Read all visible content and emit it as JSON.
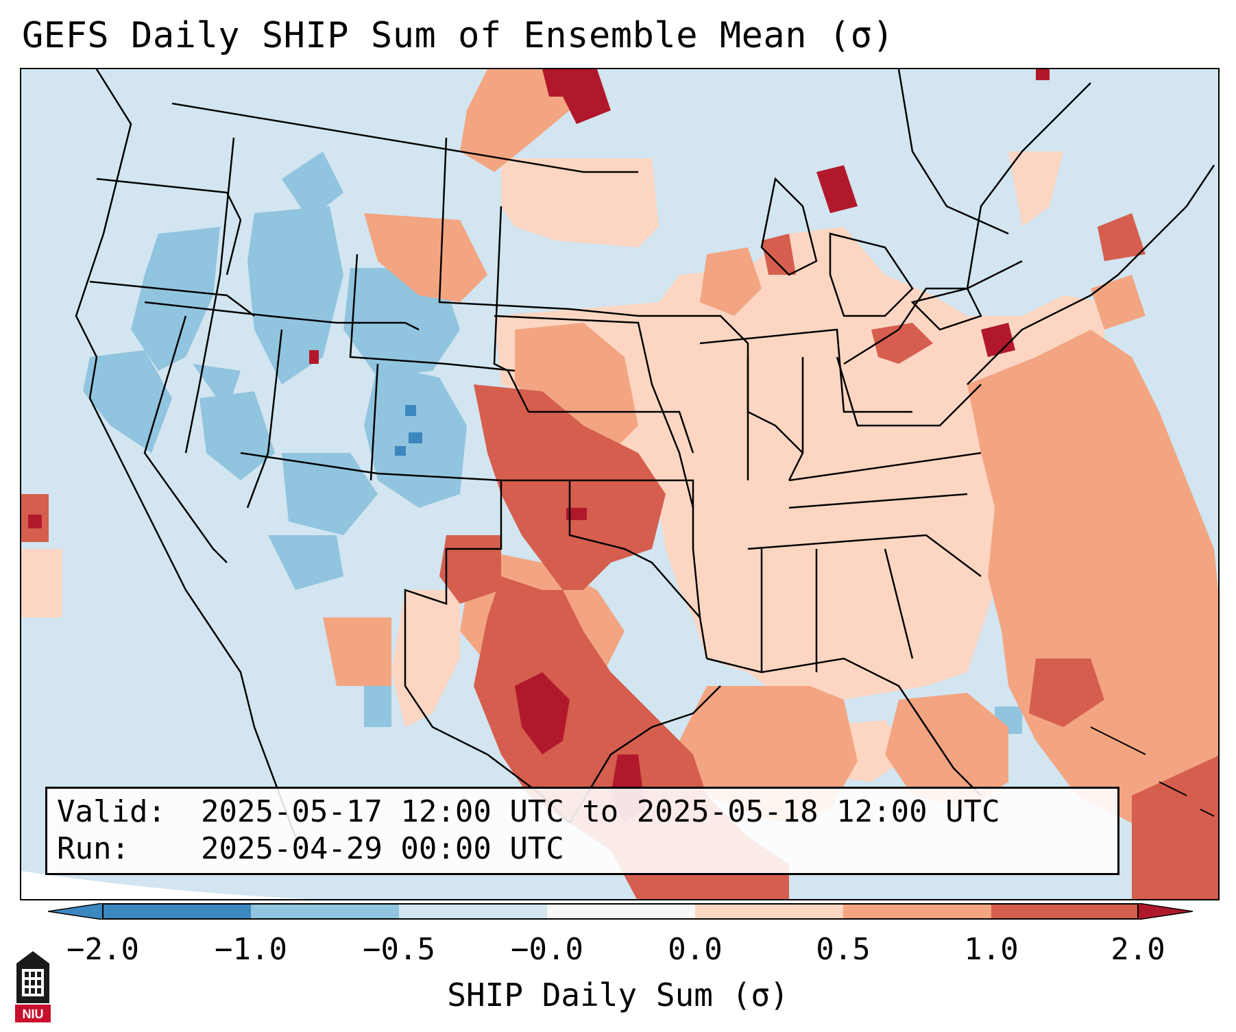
{
  "title": "GEFS Daily SHIP Sum of Ensemble Mean (σ)",
  "info": {
    "valid_label": "Valid:",
    "valid_value": "2025-05-17 12:00 UTC to 2025-05-18 12:00 UTC",
    "run_label": "Run:",
    "run_value": "2025-04-29 00:00 UTC"
  },
  "colorbar": {
    "label": "SHIP Daily Sum (σ)",
    "ticks": [
      "−2.0",
      "−1.0",
      "−0.5",
      "−0.0",
      "0.0",
      "0.5",
      "1.0",
      "2.0"
    ],
    "colors": [
      "#3d87c0",
      "#91c4de",
      "#d2e5f0",
      "#f7f7f7",
      "#fcd6c2",
      "#f3a582",
      "#d55e4e",
      "#b2182b"
    ]
  },
  "map": {
    "region": "Contiguous United States",
    "variable": "SHIP Daily Sum",
    "background_color": "#d2e5f0",
    "outline_color": "#000000"
  },
  "logo": {
    "text": "NIU",
    "icon": "niu-logo-icon",
    "color": "#c8102e"
  }
}
